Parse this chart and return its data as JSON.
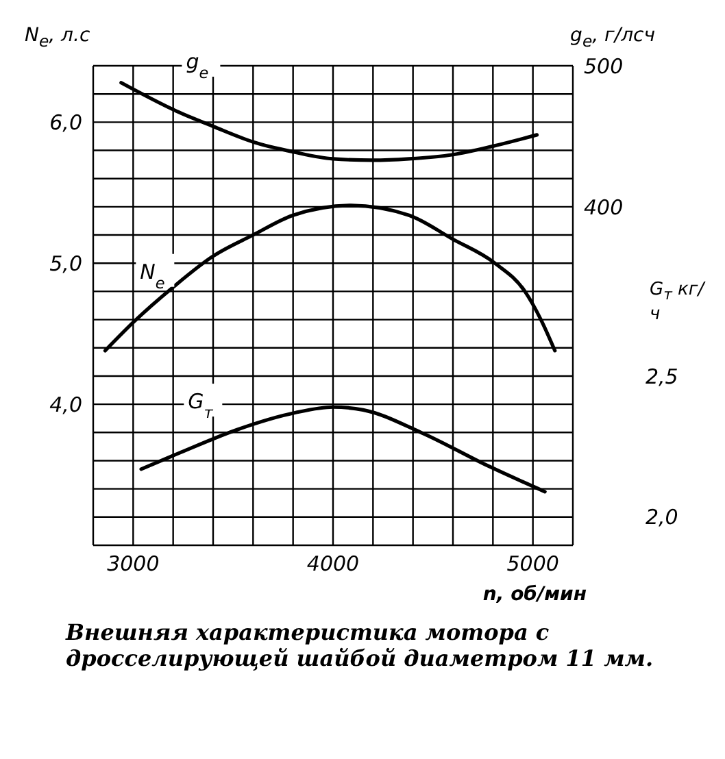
{
  "chart_data": {
    "type": "line",
    "xlabel": "n, об/мин",
    "ylabel": "N$_{e}$, л.с",
    "y2label": "g$_{e}$, г/лсч",
    "y3label": "G$_{т}$ кг/ч",
    "annotations": [
      "Внешняя характеристика мотора с дросселирующей шайбой диаметром 11 мм."
    ],
    "xlim": [
      2800,
      5200
    ],
    "xticks": [
      {
        "value": 2800,
        "label": null
      },
      {
        "value": 3000,
        "label": "3000"
      },
      {
        "value": 3200,
        "label": null
      },
      {
        "value": 3400,
        "label": null
      },
      {
        "value": 3600,
        "label": null
      },
      {
        "value": 3800,
        "label": null
      },
      {
        "value": 4000,
        "label": "4000"
      },
      {
        "value": 4200,
        "label": null
      },
      {
        "value": 4400,
        "label": null
      },
      {
        "value": 4600,
        "label": null
      },
      {
        "value": 4800,
        "label": null
      },
      {
        "value": 5000,
        "label": "5000"
      },
      {
        "value": 5200,
        "label": null
      }
    ],
    "ylim": [
      3.0,
      6.4
    ],
    "yticks": [
      {
        "value": 3.0,
        "label": null
      },
      {
        "value": 3.2,
        "label": null
      },
      {
        "value": 3.4,
        "label": null
      },
      {
        "value": 3.6,
        "label": null
      },
      {
        "value": 3.8,
        "label": null
      },
      {
        "value": 4.0,
        "label": "4,0"
      },
      {
        "value": 4.2,
        "label": null
      },
      {
        "value": 4.4,
        "label": null
      },
      {
        "value": 4.6,
        "label": null
      },
      {
        "value": 4.8,
        "label": null
      },
      {
        "value": 5.0,
        "label": "5,0"
      },
      {
        "value": 5.2,
        "label": null
      },
      {
        "value": 5.4,
        "label": null
      },
      {
        "value": 5.6,
        "label": null
      },
      {
        "value": 5.8,
        "label": null
      },
      {
        "value": 6.0,
        "label": "6,0"
      },
      {
        "value": 6.2,
        "label": null
      },
      {
        "value": 6.4,
        "label": null
      }
    ],
    "y2lim": [
      160,
      500
    ],
    "y2ticks": [
      400,
      500
    ],
    "y3lim": [
      1.9,
      3.6
    ],
    "y3ticks": [
      {
        "value": 2.0,
        "label": "2,0"
      },
      {
        "value": 2.5,
        "label": "2,5"
      }
    ],
    "grid": true,
    "marker": "none",
    "line_style": "solid",
    "series": [
      {
        "name": "g$_{e}$",
        "color": "#000000",
        "axis": "y2",
        "x": [
          2940,
          3230,
          3400,
          3600,
          3800,
          4000,
          4200,
          4380,
          4600,
          4800,
          5020
        ],
        "values": [
          488,
          467,
          457,
          446,
          439,
          434,
          433,
          434,
          437,
          443,
          451
        ]
      },
      {
        "name": "N$_{e}$",
        "color": "#000000",
        "axis": "y",
        "x": [
          2860,
          3000,
          3200,
          3400,
          3600,
          3800,
          4090,
          4380,
          4600,
          4810,
          4960,
          5040,
          5110
        ],
        "values": [
          4.38,
          4.58,
          4.83,
          5.05,
          5.2,
          5.34,
          5.41,
          5.34,
          5.17,
          5.0,
          4.8,
          4.6,
          4.38
        ]
      },
      {
        "name": "G$_{т}$",
        "color": "#000000",
        "axis": "y3",
        "x": [
          3040,
          3240,
          3520,
          3810,
          4000,
          4150,
          4440,
          4780,
          5060
        ],
        "values": [
          2.17,
          2.23,
          2.31,
          2.37,
          2.39,
          2.38,
          2.3,
          2.18,
          2.09
        ]
      }
    ]
  }
}
